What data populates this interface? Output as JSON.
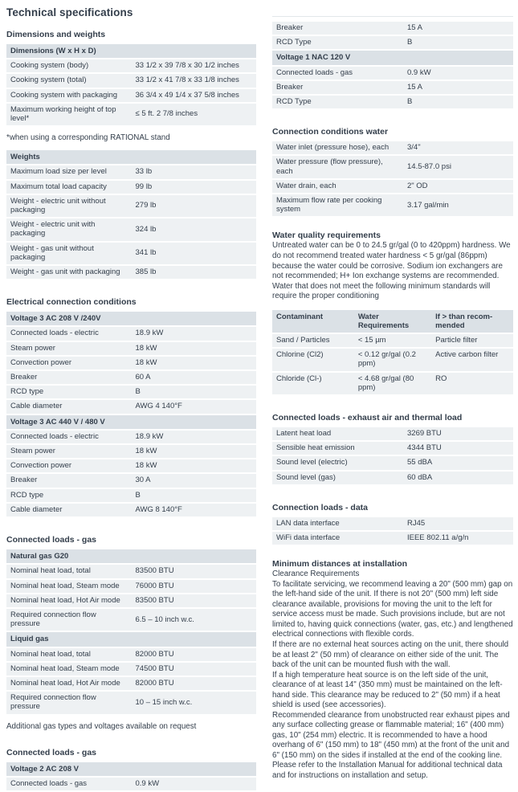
{
  "colors": {
    "text": "#333e4b",
    "table_header_bg": "#dbe1e6",
    "table_row_bg": "#eef1f3",
    "page_bg": "#ffffff"
  },
  "columns": [
    {
      "blocks": [
        {
          "type": "title",
          "text": "Technical specifications"
        },
        {
          "type": "heading",
          "text": "Dimensions and weights"
        },
        {
          "type": "kvtable",
          "rows": [
            {
              "t": "h",
              "label": "Dimensions (W x H x D)"
            },
            {
              "t": "r",
              "label": "Cooking system (body)",
              "value": "33 1/2 x 39 7/8 x 30 1/2 inches"
            },
            {
              "t": "r",
              "label": "Cooking system (total)",
              "value": "33 1/2 x 41 7/8 x 33 1/8 inches"
            },
            {
              "t": "r",
              "label": "Cooking system with packaging",
              "value": "36 3/4 x 49 1/4 x 37 5/8 inches"
            },
            {
              "t": "r",
              "label": "Maximum working height of top level*",
              "value": "≤ 5 ft. 2 7/8 inches"
            }
          ]
        },
        {
          "type": "note",
          "text": "*when using a corresponding RATIONAL stand"
        },
        {
          "type": "kvtable",
          "rows": [
            {
              "t": "h",
              "label": "Weights"
            },
            {
              "t": "r",
              "label": "Maximum load size per level",
              "value": "33 lb"
            },
            {
              "t": "r",
              "label": "Maximum total load capacity",
              "value": "99 lb"
            },
            {
              "t": "r",
              "label": "Weight - electric unit without packaging",
              "value": "279 lb"
            },
            {
              "t": "r",
              "label": "Weight - electric unit with packaging",
              "value": "324 lb"
            },
            {
              "t": "r",
              "label": "Weight - gas unit without packaging",
              "value": "341 lb"
            },
            {
              "t": "r",
              "label": "Weight - gas unit with packaging",
              "value": "385 lb"
            }
          ]
        },
        {
          "type": "heading",
          "text": "Electrical connection conditions"
        },
        {
          "type": "kvtable",
          "rows": [
            {
              "t": "h",
              "label": "Voltage 3 AC 208 V /240V"
            },
            {
              "t": "r",
              "label": "Connected loads - electric",
              "value": "18.9 kW"
            },
            {
              "t": "r",
              "label": "Steam power",
              "value": "18 kW"
            },
            {
              "t": "r",
              "label": "Convection power",
              "value": "18 kW"
            },
            {
              "t": "r",
              "label": "Breaker",
              "value": "60 A"
            },
            {
              "t": "r",
              "label": "RCD type",
              "value": "B"
            },
            {
              "t": "r",
              "label": "Cable diameter",
              "value": "AWG 4 140°F"
            },
            {
              "t": "h",
              "label": "Voltage 3 AC 440 V / 480 V"
            },
            {
              "t": "r",
              "label": "Connected loads - electric",
              "value": "18.9 kW"
            },
            {
              "t": "r",
              "label": "Steam power",
              "value": "18 kW"
            },
            {
              "t": "r",
              "label": "Convection power",
              "value": "18 kW"
            },
            {
              "t": "r",
              "label": "Breaker",
              "value": "30 A"
            },
            {
              "t": "r",
              "label": "RCD type",
              "value": "B"
            },
            {
              "t": "r",
              "label": "Cable diameter",
              "value": "AWG 8 140°F"
            }
          ]
        },
        {
          "type": "heading",
          "text": "Connected loads - gas"
        },
        {
          "type": "kvtable",
          "rows": [
            {
              "t": "h",
              "label": "Natural gas G20"
            },
            {
              "t": "r",
              "label": "Nominal heat load, total",
              "value": "83500 BTU"
            },
            {
              "t": "r",
              "label": "Nominal heat load, Steam mode",
              "value": "76000 BTU"
            },
            {
              "t": "r",
              "label": "Nominal heat load, Hot Air mode",
              "value": "83500 BTU"
            },
            {
              "t": "r",
              "label": "Required connection flow pressure",
              "value": "6.5 – 10 inch w.c."
            },
            {
              "t": "h",
              "label": "Liquid gas"
            },
            {
              "t": "r",
              "label": "Nominal heat load, total",
              "value": "82000 BTU"
            },
            {
              "t": "r",
              "label": "Nominal heat load, Steam mode",
              "value": "74500 BTU"
            },
            {
              "t": "r",
              "label": "Nominal heat load, Hot Air mode",
              "value": "82000 BTU"
            },
            {
              "t": "r",
              "label": "Required connection flow pressure",
              "value": "10 – 15 inch w.c."
            }
          ]
        },
        {
          "type": "note",
          "text": "Additional gas types and voltages available on request"
        },
        {
          "type": "heading",
          "text": "Connected loads - gas"
        },
        {
          "type": "kvtable",
          "rows": [
            {
              "t": "h",
              "label": "Voltage 2 AC 208 V"
            },
            {
              "t": "r",
              "label": "Connected loads - gas",
              "value": "0.9 kW"
            }
          ]
        }
      ]
    },
    {
      "blocks": [
        {
          "type": "cutline"
        },
        {
          "type": "kvtable",
          "rows": [
            {
              "t": "r",
              "label": "Breaker",
              "value": "15 A"
            },
            {
              "t": "r",
              "label": "RCD Type",
              "value": "B"
            },
            {
              "t": "h",
              "label": "Voltage 1 NAC 120 V"
            },
            {
              "t": "r",
              "label": "Connected loads - gas",
              "value": "0.9 kW"
            },
            {
              "t": "r",
              "label": "Breaker",
              "value": "15 A"
            },
            {
              "t": "r",
              "label": "RCD Type",
              "value": "B"
            }
          ]
        },
        {
          "type": "heading",
          "text": "Connection conditions water"
        },
        {
          "type": "kvtable",
          "rows": [
            {
              "t": "r",
              "label": "Water inlet (pressure hose), each",
              "value": "3/4\""
            },
            {
              "t": "r",
              "label": "Water pressure (flow pressure), each",
              "value": "14.5-87.0 psi"
            },
            {
              "t": "r",
              "label": "Water drain, each",
              "value": "2\" OD"
            },
            {
              "t": "r",
              "label": "Maximum flow rate per cooking system",
              "value": "3.17 gal/min"
            }
          ]
        },
        {
          "type": "subheading",
          "text": "Water quality requirements"
        },
        {
          "type": "paragraph",
          "lines": [
            "Untreated water can be 0 to 24.5 gr/gal (0 to 420ppm) hardness. We do not recommend treated water hardness < 5 gr/gal (86ppm) because the water could be corrosive. Sodium ion exchangers are not recommended; H+ Ion exchange systems are recommended. Water that does not meet the following minimum standards will require the proper conditioning"
          ]
        },
        {
          "type": "grid3",
          "header": [
            "Contaminant",
            "Water Requirements",
            "If > than recom-\nmended"
          ],
          "rows": [
            [
              "Sand / Particles",
              "< 15 µm",
              "Particle filter"
            ],
            [
              "Chlorine (Cl2)",
              "< 0.12 gr/gal (0.2 ppm)",
              "Active carbon filter"
            ],
            [
              "Chloride (Cl-)",
              "< 4.68 gr/gal (80 ppm)",
              "RO"
            ]
          ]
        },
        {
          "type": "heading",
          "text": "Connected loads - exhaust air and thermal load"
        },
        {
          "type": "kvtable",
          "rows": [
            {
              "t": "r",
              "label": "Latent heat load",
              "value": "3269 BTU"
            },
            {
              "t": "r",
              "label": "Sensible heat emission",
              "value": "4344 BTU"
            },
            {
              "t": "r",
              "label": "Sound level (electric)",
              "value": "55 dBA"
            },
            {
              "t": "r",
              "label": "Sound level (gas)",
              "value": "60 dBA"
            }
          ]
        },
        {
          "type": "heading",
          "text": "Connection loads - data"
        },
        {
          "type": "kvtable",
          "rows": [
            {
              "t": "r",
              "label": "LAN data interface",
              "value": "RJ45"
            },
            {
              "t": "r",
              "label": "WiFi data interface",
              "value": "IEEE 802.11 a/g/n"
            }
          ]
        },
        {
          "type": "subheading",
          "text": "Minimum distances at installation"
        },
        {
          "type": "paragraph",
          "lines": [
            "Clearance Requirements",
            "To facilitate servicing, we recommend leaving a 20\" (500 mm) gap on the left-hand side of the unit. If there is not 20\" (500 mm) left side clearance available, provisions for moving the unit to the left for service access must be made. Such provisions include, but are not limited to, having quick connections (water, gas, etc.) and lengthened electrical connections with flexible cords.",
            "If there are no external heat sources acting on the unit, there should be at least 2\" (50 mm) of clearance on either side of the unit. The back of the unit can be mounted flush with the wall.",
            "If a high temperature heat source is on the left side of the unit, clearance of at least 14\" (350 mm) must be maintained on the left-hand side. This clearance may be reduced to 2\" (50 mm) if a heat shield is used (see accessories).",
            "Recommended clearance from unobstructed rear exhaust pipes and any surface collecting grease or flammable material; 16\" (400 mm) gas, 10\" (254 mm) electric. It is recommended to have a hood overhang of 6\" (150 mm) to 18\" (450 mm) at the front of the unit and 6\" (150 mm) on the sides if installed at the end of the cooking line. Please refer to the Installation Manual for additional technical data and for instructions on installation and setup."
          ]
        }
      ]
    }
  ]
}
